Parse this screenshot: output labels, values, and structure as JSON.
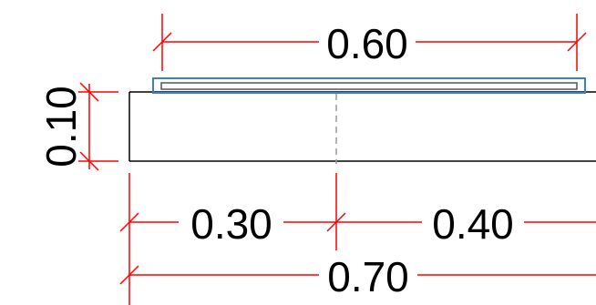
{
  "drawing": {
    "colors": {
      "dimension": "#ff0000",
      "outline": "#000000",
      "plate": "#3b7fc4",
      "centerline": "#9a9a9a",
      "text": "#000000"
    },
    "dimensions": {
      "top_width": "0.60",
      "height": "0.10",
      "left_part": "0.30",
      "right_part": "0.40",
      "total": "0.70"
    }
  }
}
